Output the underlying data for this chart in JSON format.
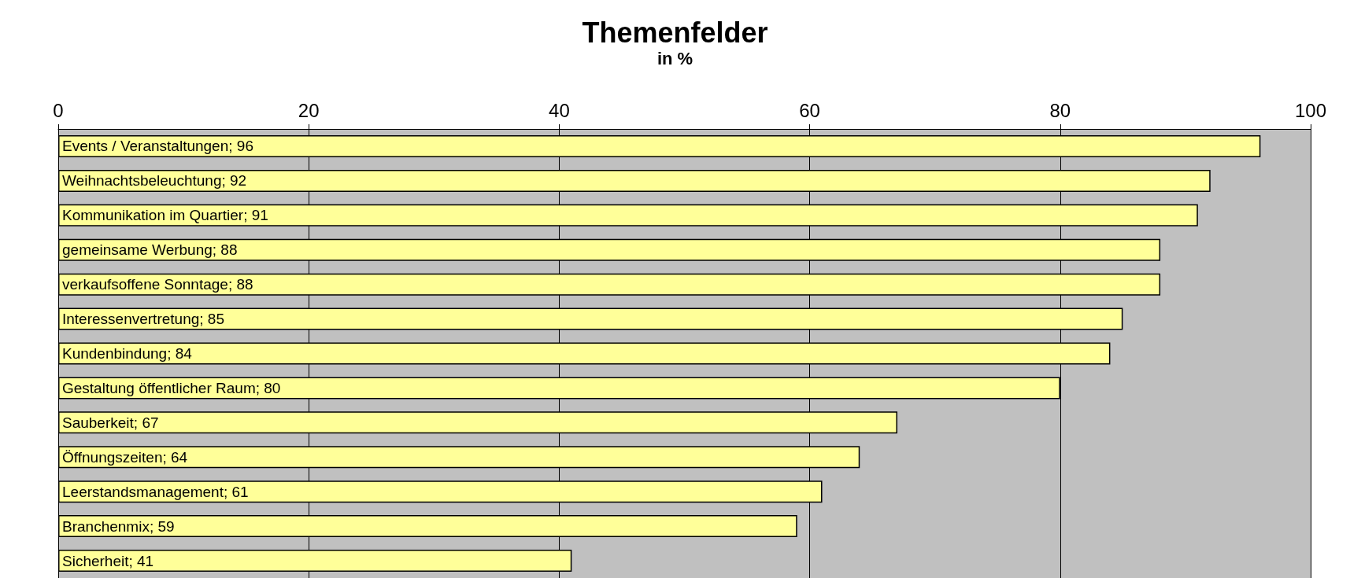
{
  "chart_data": {
    "type": "bar",
    "orientation": "horizontal",
    "title": "Themenfelder",
    "subtitle": "in %",
    "categories": [
      null,
      null,
      null,
      null,
      null,
      null,
      null,
      null,
      null,
      null,
      null,
      null,
      null
    ],
    "values": [
      96,
      92,
      91,
      88,
      88,
      85,
      84,
      80,
      67,
      64,
      61,
      59,
      41
    ],
    "value_labels": [
      "Events / Veranstaltungen; 96",
      "Weihnachtsbeleuchtung; 92",
      "Kommunikation im Quartier; 91",
      "gemeinsame Werbung; 88",
      "verkaufsoffene Sonntage; 88",
      "Interessenvertretung; 85",
      "Kundenbindung; 84",
      "Gestaltung öffentlicher Raum; 80",
      "Sauberkeit; 67",
      "Öffnungszeiten; 64",
      "Leerstandsmanagement; 61",
      "Branchenmix; 59",
      "Sicherheit; 41"
    ],
    "color": "#ffff99",
    "xlim": [
      0,
      100
    ],
    "xticks": [
      0,
      20,
      40,
      60,
      80,
      100
    ],
    "grid": "x",
    "tick_labels": "x"
  }
}
